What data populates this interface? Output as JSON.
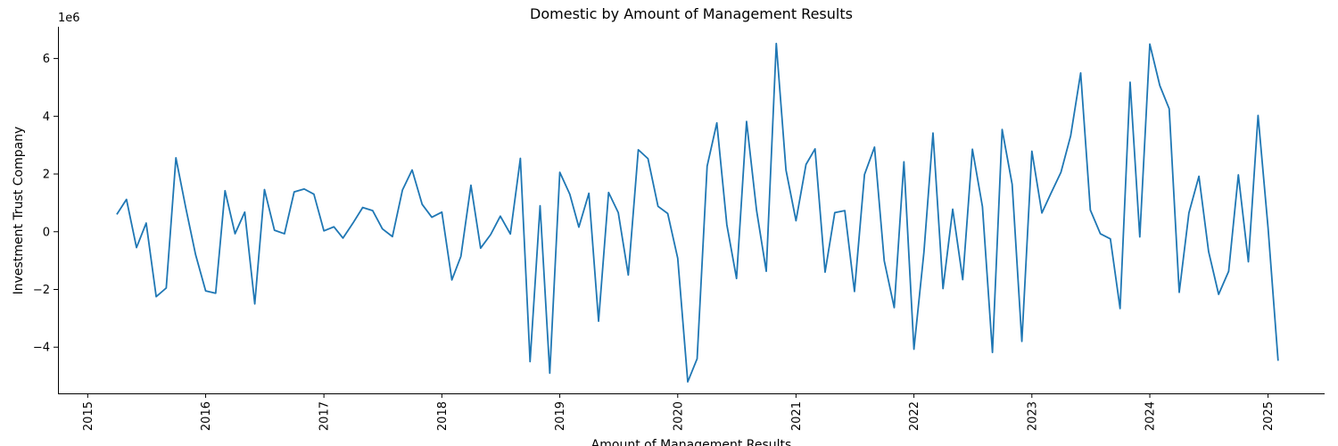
{
  "chart_data": {
    "type": "line",
    "title": "Domestic by Amount of Management Results",
    "xlabel": "Amount of Management Results",
    "ylabel": "Investment Trust Company",
    "y_offset_label": "1e6",
    "y_scale_factor": 1000000,
    "xlim": [
      "2014-10-01",
      "2025-06-25"
    ],
    "ylim": [
      -5.6,
      7.1
    ],
    "grid": false,
    "line_color": "#1f77b4",
    "x_tick_labels": [
      "2015",
      "2016",
      "2017",
      "2018",
      "2019",
      "2020",
      "2021",
      "2022",
      "2023",
      "2024",
      "2025"
    ],
    "y_tick_labels": [
      "−4",
      "−2",
      "0",
      "2",
      "4",
      "6"
    ],
    "series": [
      {
        "x": [
          "2015-04",
          "2015-05",
          "2015-06",
          "2015-07",
          "2015-08",
          "2015-09",
          "2015-10",
          "2015-11",
          "2015-12",
          "2016-01",
          "2016-02",
          "2016-03",
          "2016-04",
          "2016-05",
          "2016-06",
          "2016-07",
          "2016-08",
          "2016-09",
          "2016-10",
          "2016-11",
          "2016-12",
          "2017-01",
          "2017-02",
          "2017-03",
          "2017-04",
          "2017-05",
          "2017-06",
          "2017-07",
          "2017-08",
          "2017-09",
          "2017-10",
          "2017-11",
          "2017-12",
          "2018-01",
          "2018-02",
          "2018-03",
          "2018-04",
          "2018-05",
          "2018-06",
          "2018-07",
          "2018-08",
          "2018-09",
          "2018-10",
          "2018-11",
          "2018-12",
          "2019-01",
          "2019-02",
          "2019-03",
          "2019-04",
          "2019-05",
          "2019-06",
          "2019-07",
          "2019-08",
          "2019-09",
          "2019-10",
          "2019-11",
          "2019-12",
          "2020-01",
          "2020-02",
          "2020-03",
          "2020-04",
          "2020-05",
          "2020-06",
          "2020-07",
          "2020-08",
          "2020-09",
          "2020-10",
          "2020-11",
          "2020-12",
          "2021-01",
          "2021-02",
          "2021-03",
          "2021-04",
          "2021-05",
          "2021-06",
          "2021-07",
          "2021-08",
          "2021-09",
          "2021-10",
          "2021-11",
          "2021-12",
          "2022-01",
          "2022-02",
          "2022-03",
          "2022-04",
          "2022-05",
          "2022-06",
          "2022-07",
          "2022-08",
          "2022-09",
          "2022-10",
          "2022-11",
          "2022-12",
          "2023-01",
          "2023-02",
          "2023-03",
          "2023-04",
          "2023-05",
          "2023-06",
          "2023-07",
          "2023-08",
          "2023-09",
          "2023-10",
          "2023-11",
          "2023-12",
          "2024-01",
          "2024-02",
          "2024-03",
          "2024-04",
          "2024-05",
          "2024-06",
          "2024-07",
          "2024-08",
          "2024-09",
          "2024-10",
          "2024-11",
          "2024-12",
          "2025-01",
          "2025-02"
        ],
        "y": [
          0.6,
          1.12,
          -0.55,
          0.3,
          -2.25,
          -1.95,
          2.56,
          0.8,
          -0.8,
          -2.05,
          -2.13,
          1.42,
          -0.07,
          0.68,
          -2.5,
          1.46,
          0.05,
          -0.07,
          1.38,
          1.48,
          1.3,
          0.03,
          0.17,
          -0.22,
          0.3,
          0.84,
          0.73,
          0.1,
          -0.17,
          1.44,
          2.14,
          0.95,
          0.5,
          0.68,
          -1.67,
          -0.85,
          1.61,
          -0.57,
          -0.1,
          0.54,
          -0.08,
          2.54,
          -4.5,
          0.9,
          -4.9,
          2.06,
          1.3,
          0.16,
          1.33,
          -3.1,
          1.36,
          0.66,
          -1.5,
          2.84,
          2.53,
          0.88,
          0.63,
          -0.92,
          -5.2,
          -4.4,
          2.27,
          3.77,
          0.24,
          -1.62,
          3.82,
          0.74,
          -1.37,
          6.52,
          2.14,
          0.38,
          2.33,
          2.87,
          -1.4,
          0.66,
          0.73,
          -2.07,
          1.98,
          2.93,
          -1.0,
          -2.63,
          2.42,
          -4.07,
          -0.7,
          3.42,
          -1.97,
          0.78,
          -1.66,
          2.86,
          0.87,
          -4.18,
          3.54,
          1.64,
          -3.8,
          2.79,
          0.65,
          1.33,
          2.06,
          3.32,
          5.5,
          0.75,
          -0.07,
          -0.25,
          -2.66,
          5.18,
          -0.18,
          6.5,
          5.06,
          4.26,
          -2.1,
          0.65,
          1.92,
          -0.69,
          -2.17,
          -1.37,
          1.97,
          -1.04,
          4.03,
          0.13,
          -4.47
        ]
      }
    ]
  }
}
